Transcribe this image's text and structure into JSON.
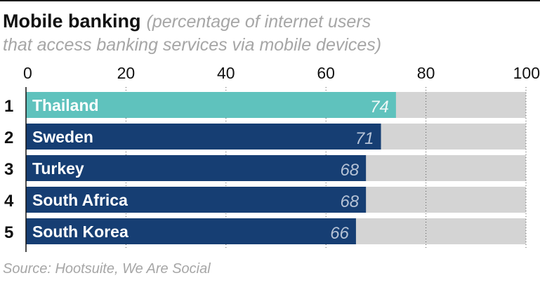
{
  "header": {
    "title": "Mobile banking",
    "subtitle_line1": "(percentage of internet users",
    "subtitle_line2": "that access banking services via mobile devices)"
  },
  "footer": {
    "source": "Source: Hootsuite, We Are Social"
  },
  "colors": {
    "highlight": "#5fc2bd",
    "bar": "#163e73",
    "track": "#d4d4d4",
    "value_text_on_highlight": "#eef8f7",
    "value_text_on_bar": "#b6c3d6"
  },
  "chart_data": {
    "type": "bar",
    "orientation": "horizontal",
    "title": "Mobile banking",
    "subtitle": "(percentage of internet users that access banking services via mobile devices)",
    "xlim": [
      0,
      100
    ],
    "ticks": [
      0,
      20,
      40,
      60,
      80,
      100
    ],
    "ranks": [
      "1",
      "2",
      "3",
      "4",
      "5"
    ],
    "categories": [
      "Thailand",
      "Sweden",
      "Turkey",
      "South Africa",
      "South Korea"
    ],
    "values": [
      74,
      71,
      68,
      68,
      66
    ],
    "highlight_index": 0,
    "grid": true
  }
}
